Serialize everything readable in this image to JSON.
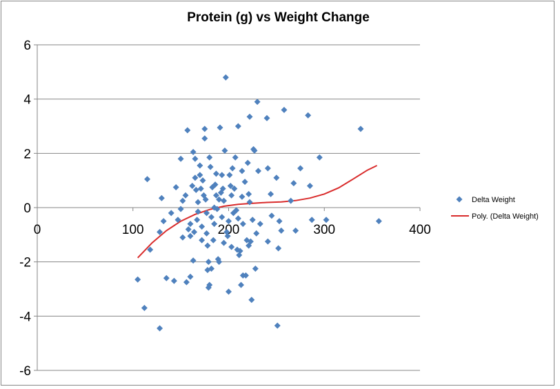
{
  "chart_data": {
    "type": "scatter",
    "title": "Protein (g) vs Weight Change",
    "xlabel": "",
    "ylabel": "",
    "xlim": [
      0,
      400
    ],
    "ylim": [
      -6,
      6
    ],
    "x_ticks": [
      0,
      100,
      200,
      300,
      400
    ],
    "y_ticks": [
      -6,
      -4,
      -2,
      0,
      2,
      4,
      6
    ],
    "grid": "horizontal",
    "legend_position": "right",
    "series": [
      {
        "name": "Delta Weight",
        "marker": "diamond",
        "color": "#4F81BD",
        "points": [
          [
            105,
            -2.65
          ],
          [
            115,
            1.05
          ],
          [
            118,
            -1.55
          ],
          [
            112,
            -3.7
          ],
          [
            128,
            -4.45
          ],
          [
            130,
            0.35
          ],
          [
            132,
            -0.5
          ],
          [
            135,
            -2.6
          ],
          [
            128,
            -0.9
          ],
          [
            140,
            -0.2
          ],
          [
            143,
            -2.7
          ],
          [
            145,
            0.75
          ],
          [
            147,
            -0.45
          ],
          [
            150,
            -0.05
          ],
          [
            150,
            1.8
          ],
          [
            152,
            0.25
          ],
          [
            152,
            -1.1
          ],
          [
            155,
            0.45
          ],
          [
            156,
            -2.75
          ],
          [
            157,
            2.85
          ],
          [
            158,
            -0.8
          ],
          [
            160,
            -1.05
          ],
          [
            160,
            -2.55
          ],
          [
            160,
            -0.6
          ],
          [
            162,
            0.8
          ],
          [
            163,
            2.05
          ],
          [
            163,
            -1.95
          ],
          [
            164,
            -0.9
          ],
          [
            165,
            1.8
          ],
          [
            165,
            1.1
          ],
          [
            166,
            0.65
          ],
          [
            167,
            -0.45
          ],
          [
            168,
            0.2
          ],
          [
            168,
            -0.15
          ],
          [
            170,
            1.55
          ],
          [
            170,
            1.2
          ],
          [
            171,
            0.7
          ],
          [
            172,
            -1.2
          ],
          [
            172,
            -0.7
          ],
          [
            173,
            1.0
          ],
          [
            174,
            0.45
          ],
          [
            175,
            2.9
          ],
          [
            175,
            2.55
          ],
          [
            176,
            0.3
          ],
          [
            177,
            -0.2
          ],
          [
            177,
            -0.95
          ],
          [
            178,
            -1.4
          ],
          [
            178,
            -2.3
          ],
          [
            179,
            -2.0
          ],
          [
            179,
            -2.95
          ],
          [
            180,
            -2.85
          ],
          [
            180,
            1.85
          ],
          [
            181,
            1.5
          ],
          [
            182,
            -0.35
          ],
          [
            182,
            -2.25
          ],
          [
            183,
            0.75
          ],
          [
            184,
            -1.2
          ],
          [
            185,
            -0.6
          ],
          [
            185,
            0.0
          ],
          [
            186,
            0.85
          ],
          [
            187,
            1.25
          ],
          [
            187,
            0.45
          ],
          [
            188,
            -0.05
          ],
          [
            189,
            -1.9
          ],
          [
            190,
            -2.0
          ],
          [
            190,
            0.3
          ],
          [
            191,
            2.95
          ],
          [
            192,
            0.55
          ],
          [
            193,
            -0.35
          ],
          [
            193,
            1.2
          ],
          [
            194,
            0.7
          ],
          [
            195,
            -1.3
          ],
          [
            195,
            0.25
          ],
          [
            196,
            2.1
          ],
          [
            197,
            4.8
          ],
          [
            198,
            -0.9
          ],
          [
            199,
            -1.05
          ],
          [
            200,
            -0.5
          ],
          [
            200,
            -3.1
          ],
          [
            201,
            1.2
          ],
          [
            202,
            0.8
          ],
          [
            203,
            0.45
          ],
          [
            203,
            -1.45
          ],
          [
            204,
            1.45
          ],
          [
            205,
            -0.2
          ],
          [
            206,
            0.7
          ],
          [
            207,
            1.85
          ],
          [
            208,
            -0.1
          ],
          [
            209,
            -1.55
          ],
          [
            210,
            -0.4
          ],
          [
            210,
            3.0
          ],
          [
            211,
            -1.75
          ],
          [
            212,
            -1.6
          ],
          [
            213,
            -2.85
          ],
          [
            214,
            0.4
          ],
          [
            214,
            1.35
          ],
          [
            215,
            -2.5
          ],
          [
            215,
            -0.6
          ],
          [
            217,
            0.95
          ],
          [
            218,
            -2.5
          ],
          [
            219,
            -1.2
          ],
          [
            220,
            1.65
          ],
          [
            221,
            0.5
          ],
          [
            221,
            -1.4
          ],
          [
            222,
            3.35
          ],
          [
            222,
            0.2
          ],
          [
            223,
            -1.25
          ],
          [
            224,
            -3.4
          ],
          [
            225,
            -0.45
          ],
          [
            226,
            2.15
          ],
          [
            227,
            2.1
          ],
          [
            228,
            -2.25
          ],
          [
            229,
            -0.95
          ],
          [
            230,
            3.9
          ],
          [
            231,
            1.35
          ],
          [
            233,
            -0.6
          ],
          [
            240,
            3.3
          ],
          [
            241,
            -1.25
          ],
          [
            241,
            1.45
          ],
          [
            244,
            0.5
          ],
          [
            245,
            -0.3
          ],
          [
            250,
            1.1
          ],
          [
            251,
            -4.35
          ],
          [
            252,
            -1.5
          ],
          [
            253,
            -0.5
          ],
          [
            255,
            -0.85
          ],
          [
            258,
            3.6
          ],
          [
            265,
            0.25
          ],
          [
            268,
            0.9
          ],
          [
            270,
            -0.85
          ],
          [
            275,
            1.45
          ],
          [
            283,
            3.4
          ],
          [
            285,
            0.8
          ],
          [
            287,
            -0.45
          ],
          [
            295,
            1.85
          ],
          [
            302,
            -0.45
          ],
          [
            338,
            2.9
          ],
          [
            357,
            -0.5
          ]
        ]
      },
      {
        "name": "Poly. (Delta Weight)",
        "type": "trendline",
        "color": "#D92B2B",
        "points": [
          [
            105,
            -1.85
          ],
          [
            120,
            -1.3
          ],
          [
            135,
            -0.85
          ],
          [
            150,
            -0.5
          ],
          [
            165,
            -0.25
          ],
          [
            180,
            -0.07
          ],
          [
            195,
            0.05
          ],
          [
            210,
            0.12
          ],
          [
            225,
            0.16
          ],
          [
            240,
            0.19
          ],
          [
            255,
            0.21
          ],
          [
            270,
            0.26
          ],
          [
            285,
            0.35
          ],
          [
            300,
            0.5
          ],
          [
            315,
            0.73
          ],
          [
            330,
            1.05
          ],
          [
            345,
            1.38
          ],
          [
            355,
            1.55
          ]
        ]
      }
    ]
  }
}
